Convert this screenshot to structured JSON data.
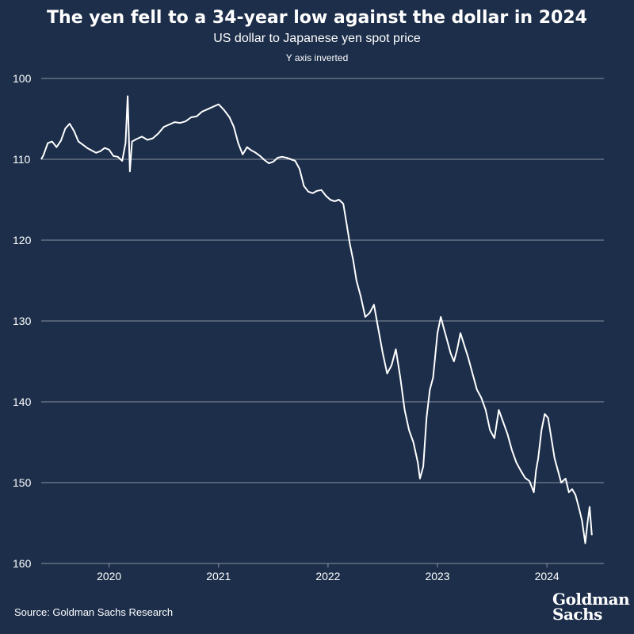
{
  "header": {
    "title": "The yen fell to a 34-year low against the dollar in 2024",
    "subtitle": "US dollar to Japanese yen spot price",
    "note": "Y axis inverted"
  },
  "footer": {
    "source": "Source: Goldman Sachs Research",
    "logo_line1": "Goldman",
    "logo_line2": "Sachs"
  },
  "colors": {
    "background": "#1c2e4a",
    "line": "#ffffff",
    "grid": "#8a93a3",
    "text": "#ffffff"
  },
  "chart_data": {
    "type": "line",
    "title": "The yen fell to a 34-year low against the dollar in 2024",
    "subtitle": "US dollar to Japanese yen spot price",
    "ylabel": "",
    "xlabel": "",
    "y_inverted": true,
    "ylim": [
      100,
      160
    ],
    "xlim": [
      2019.38,
      2024.52
    ],
    "yticks": [
      100,
      110,
      120,
      130,
      140,
      150,
      160
    ],
    "xticks": [
      {
        "label": "2020",
        "value": 2020.0
      },
      {
        "label": "2021",
        "value": 2021.0
      },
      {
        "label": "2022",
        "value": 2022.0
      },
      {
        "label": "2023",
        "value": 2023.0
      },
      {
        "label": "2024",
        "value": 2024.0
      }
    ],
    "grid": true,
    "series": [
      {
        "values": [
          [
            2019.38,
            110.0
          ],
          [
            2019.4,
            109.5
          ],
          [
            2019.44,
            108.0
          ],
          [
            2019.48,
            107.8
          ],
          [
            2019.52,
            108.5
          ],
          [
            2019.56,
            107.7
          ],
          [
            2019.6,
            106.2
          ],
          [
            2019.64,
            105.6
          ],
          [
            2019.68,
            106.5
          ],
          [
            2019.72,
            107.8
          ],
          [
            2019.76,
            108.2
          ],
          [
            2019.8,
            108.6
          ],
          [
            2019.84,
            108.9
          ],
          [
            2019.88,
            109.2
          ],
          [
            2019.92,
            109.0
          ],
          [
            2019.96,
            108.6
          ],
          [
            2020.0,
            108.8
          ],
          [
            2020.04,
            109.6
          ],
          [
            2020.08,
            109.7
          ],
          [
            2020.12,
            110.2
          ],
          [
            2020.15,
            108.0
          ],
          [
            2020.17,
            102.2
          ],
          [
            2020.19,
            111.5
          ],
          [
            2020.21,
            107.8
          ],
          [
            2020.25,
            107.5
          ],
          [
            2020.3,
            107.2
          ],
          [
            2020.35,
            107.6
          ],
          [
            2020.4,
            107.4
          ],
          [
            2020.45,
            106.8
          ],
          [
            2020.5,
            106.0
          ],
          [
            2020.55,
            105.7
          ],
          [
            2020.6,
            105.4
          ],
          [
            2020.65,
            105.5
          ],
          [
            2020.7,
            105.3
          ],
          [
            2020.75,
            104.8
          ],
          [
            2020.8,
            104.7
          ],
          [
            2020.85,
            104.1
          ],
          [
            2020.9,
            103.8
          ],
          [
            2020.95,
            103.5
          ],
          [
            2021.0,
            103.2
          ],
          [
            2021.05,
            103.9
          ],
          [
            2021.1,
            104.8
          ],
          [
            2021.14,
            106.0
          ],
          [
            2021.18,
            108.0
          ],
          [
            2021.22,
            109.4
          ],
          [
            2021.26,
            108.5
          ],
          [
            2021.3,
            108.9
          ],
          [
            2021.34,
            109.2
          ],
          [
            2021.38,
            109.6
          ],
          [
            2021.42,
            110.1
          ],
          [
            2021.46,
            110.5
          ],
          [
            2021.5,
            110.3
          ],
          [
            2021.54,
            109.8
          ],
          [
            2021.58,
            109.7
          ],
          [
            2021.62,
            109.8
          ],
          [
            2021.66,
            110.0
          ],
          [
            2021.7,
            110.2
          ],
          [
            2021.74,
            111.2
          ],
          [
            2021.78,
            113.3
          ],
          [
            2021.82,
            114.0
          ],
          [
            2021.86,
            114.2
          ],
          [
            2021.9,
            113.9
          ],
          [
            2021.94,
            113.8
          ],
          [
            2021.98,
            114.5
          ],
          [
            2022.02,
            115.0
          ],
          [
            2022.06,
            115.2
          ],
          [
            2022.1,
            115.0
          ],
          [
            2022.14,
            115.5
          ],
          [
            2022.17,
            118.0
          ],
          [
            2022.2,
            120.5
          ],
          [
            2022.23,
            122.5
          ],
          [
            2022.26,
            125.0
          ],
          [
            2022.3,
            127.0
          ],
          [
            2022.34,
            129.5
          ],
          [
            2022.38,
            129.0
          ],
          [
            2022.42,
            128.0
          ],
          [
            2022.46,
            131.0
          ],
          [
            2022.5,
            134.0
          ],
          [
            2022.54,
            136.5
          ],
          [
            2022.58,
            135.5
          ],
          [
            2022.62,
            133.5
          ],
          [
            2022.66,
            137.0
          ],
          [
            2022.7,
            141.0
          ],
          [
            2022.74,
            143.5
          ],
          [
            2022.78,
            145.0
          ],
          [
            2022.82,
            147.5
          ],
          [
            2022.84,
            149.5
          ],
          [
            2022.87,
            148.0
          ],
          [
            2022.9,
            142.0
          ],
          [
            2022.93,
            138.5
          ],
          [
            2022.96,
            137.0
          ],
          [
            2023.0,
            131.5
          ],
          [
            2023.03,
            129.5
          ],
          [
            2023.06,
            131.0
          ],
          [
            2023.09,
            132.5
          ],
          [
            2023.12,
            134.0
          ],
          [
            2023.15,
            135.0
          ],
          [
            2023.18,
            133.5
          ],
          [
            2023.21,
            131.5
          ],
          [
            2023.24,
            132.8
          ],
          [
            2023.28,
            134.5
          ],
          [
            2023.32,
            136.5
          ],
          [
            2023.36,
            138.5
          ],
          [
            2023.4,
            139.5
          ],
          [
            2023.44,
            141.0
          ],
          [
            2023.48,
            143.5
          ],
          [
            2023.52,
            144.5
          ],
          [
            2023.56,
            141.0
          ],
          [
            2023.6,
            142.5
          ],
          [
            2023.64,
            144.0
          ],
          [
            2023.68,
            146.0
          ],
          [
            2023.72,
            147.5
          ],
          [
            2023.76,
            148.5
          ],
          [
            2023.8,
            149.4
          ],
          [
            2023.84,
            149.8
          ],
          [
            2023.88,
            151.2
          ],
          [
            2023.9,
            148.5
          ],
          [
            2023.92,
            147.0
          ],
          [
            2023.95,
            143.5
          ],
          [
            2023.98,
            141.5
          ],
          [
            2024.01,
            142.0
          ],
          [
            2024.04,
            144.5
          ],
          [
            2024.07,
            147.0
          ],
          [
            2024.1,
            148.5
          ],
          [
            2024.13,
            150.0
          ],
          [
            2024.17,
            149.5
          ],
          [
            2024.2,
            151.2
          ],
          [
            2024.23,
            150.8
          ],
          [
            2024.26,
            151.5
          ],
          [
            2024.29,
            153.0
          ],
          [
            2024.32,
            154.7
          ],
          [
            2024.35,
            157.5
          ],
          [
            2024.37,
            155.0
          ],
          [
            2024.39,
            153.0
          ],
          [
            2024.41,
            156.5
          ]
        ]
      }
    ]
  }
}
